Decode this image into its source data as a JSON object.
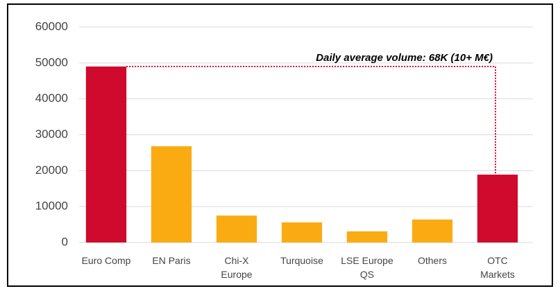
{
  "chart_data": {
    "type": "bar",
    "categories": [
      "Euro Comp",
      "EN Paris",
      "Chi-X\nEurope",
      "Turquoise",
      "LSE Europe\nQS",
      "Others",
      "OTC\nMarkets"
    ],
    "values": [
      49000,
      26800,
      7500,
      5600,
      3100,
      6400,
      18900
    ],
    "colors": [
      "#cf0a2c",
      "#fbab12",
      "#fbab12",
      "#fbab12",
      "#fbab12",
      "#fbab12",
      "#cf0a2c"
    ],
    "annotation": "Daily average volume: 68K (10+ M€)",
    "annotation_color": "#cf0a2c",
    "ylim": [
      0,
      60000
    ],
    "yticks": [
      0,
      10000,
      20000,
      30000,
      40000,
      50000,
      60000
    ],
    "grid": true
  }
}
